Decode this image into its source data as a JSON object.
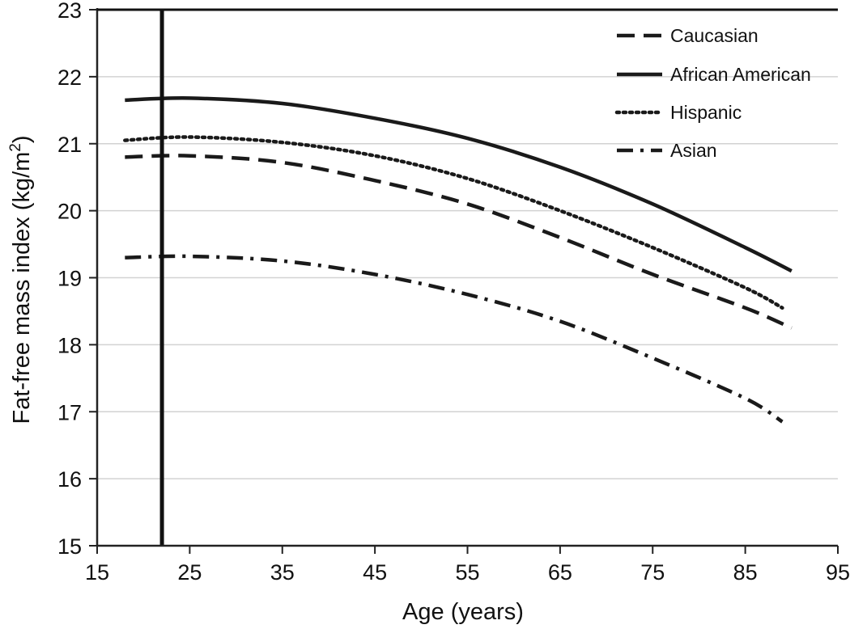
{
  "chart_data": {
    "type": "line",
    "title": "",
    "xlabel": "Age (years)",
    "ylabel_main": "Fat-free mass index (kg/m",
    "ylabel_sup": "2",
    "ylabel_close": ")",
    "xlim": [
      15,
      95
    ],
    "ylim": [
      15,
      23
    ],
    "x_ticks": [
      15,
      25,
      35,
      45,
      55,
      65,
      75,
      85,
      95
    ],
    "x_tick_labels": [
      "15",
      "25",
      "35",
      "45",
      "55",
      "65",
      "75",
      "85",
      "95"
    ],
    "y_ticks": [
      15,
      16,
      17,
      18,
      19,
      20,
      21,
      22,
      23
    ],
    "y_tick_labels": [
      "15",
      "16",
      "17",
      "18",
      "19",
      "20",
      "21",
      "22",
      "23"
    ],
    "grid": "horizontal",
    "legend_position": "top-right",
    "reference_line_x": 22,
    "x": [
      18,
      25,
      35,
      45,
      55,
      65,
      75,
      85,
      90
    ],
    "series": [
      {
        "name": "Caucasian",
        "style": "dashed",
        "color": "#1a1a1a",
        "values": [
          20.8,
          20.82,
          20.72,
          20.45,
          20.1,
          19.6,
          19.05,
          18.55,
          18.25
        ],
        "last_x": 90
      },
      {
        "name": "African American",
        "style": "solid",
        "color": "#1a1a1a",
        "values": [
          21.65,
          21.68,
          21.6,
          21.38,
          21.08,
          20.65,
          20.1,
          19.45,
          19.1
        ],
        "last_x": 90
      },
      {
        "name": "Hispanic",
        "style": "dotted",
        "color": "#1a1a1a",
        "values": [
          21.05,
          21.1,
          21.02,
          20.82,
          20.48,
          20.0,
          19.45,
          18.85,
          18.55
        ],
        "last_x": 89
      },
      {
        "name": "Asian",
        "style": "dashdot",
        "color": "#1a1a1a",
        "values": [
          19.3,
          19.32,
          19.25,
          19.05,
          18.75,
          18.35,
          17.8,
          17.2,
          16.85
        ],
        "last_x": 89
      }
    ]
  }
}
